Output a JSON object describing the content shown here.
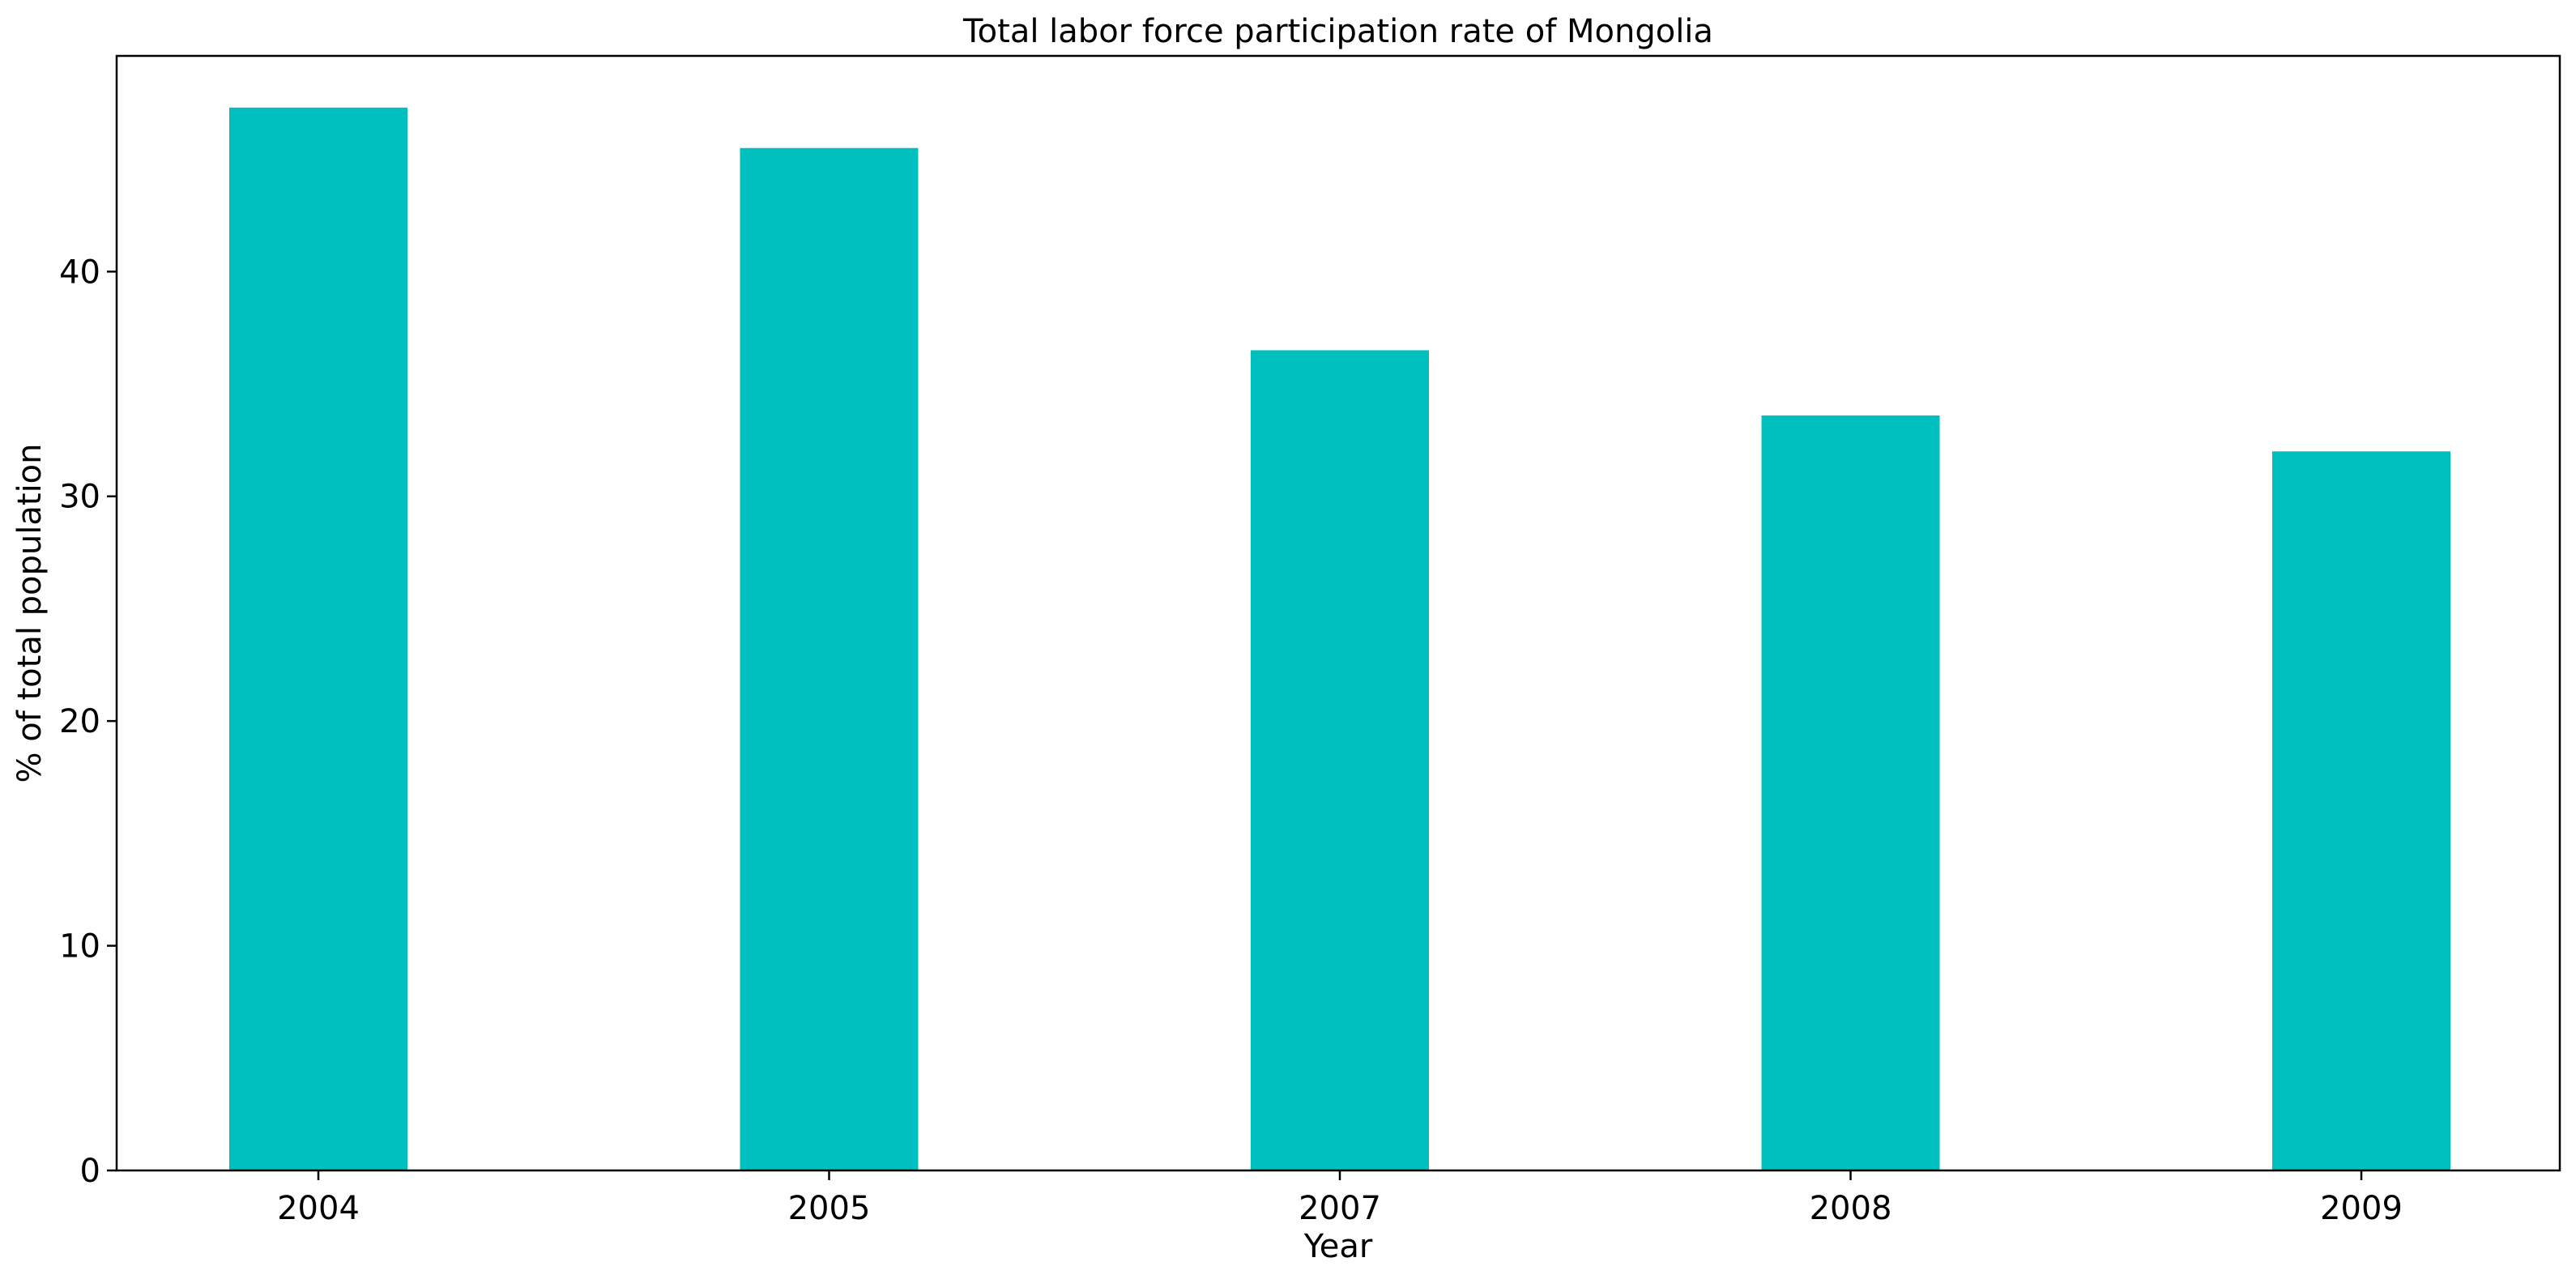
{
  "chart_data": {
    "type": "bar",
    "title": "Total labor force participation rate of Mongolia",
    "xlabel": "Year",
    "ylabel": "% of total population",
    "categories": [
      "2004",
      "2005",
      "2007",
      "2008",
      "2009"
    ],
    "values": [
      47.3,
      45.5,
      36.5,
      33.6,
      32.0
    ],
    "ylim": [
      0,
      49.6
    ],
    "yticks": [
      "0",
      "10",
      "20",
      "30",
      "40"
    ],
    "bar_color": "#00bfbf",
    "grid": false,
    "legend": "none"
  }
}
